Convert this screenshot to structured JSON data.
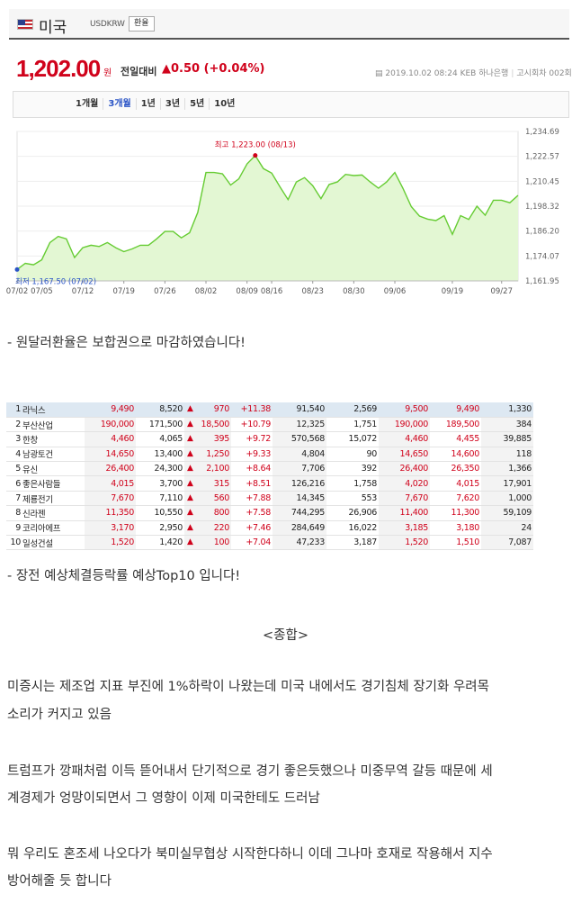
{
  "fx": {
    "country": "미국",
    "code": "USDKRW",
    "exchange_button": "환율",
    "price": "1,202.00",
    "unit": "원",
    "prev_label": "전일대비",
    "change": "▲0.50 (+0.04%)",
    "meta": {
      "datetime": "2019.10.02 08:24",
      "bank": "KEB 하나은행",
      "round": "고시회차 002회"
    },
    "periods": [
      "1개월",
      "3개월",
      "1년",
      "3년",
      "5년",
      "10년"
    ],
    "active_period": "3개월",
    "colors": {
      "up": "#d0021b",
      "line": "#66cc33",
      "fill": "#e3f7d3",
      "low_dot": "#2a54c6"
    }
  },
  "chart_data": {
    "type": "area",
    "ylim": [
      1161.95,
      1234.69
    ],
    "y_ticks": [
      "1,234.69",
      "1,222.57",
      "1,210.45",
      "1,198.32",
      "1,186.20",
      "1,174.07",
      "1,161.95"
    ],
    "x_ticks": [
      {
        "label": "07/02",
        "index": 0
      },
      {
        "label": "07/05",
        "index": 3
      },
      {
        "label": "07/12",
        "index": 8
      },
      {
        "label": "07/19",
        "index": 13
      },
      {
        "label": "07/26",
        "index": 18
      },
      {
        "label": "08/02",
        "index": 23
      },
      {
        "label": "08/09",
        "index": 28
      },
      {
        "label": "08/16",
        "index": 31
      },
      {
        "label": "08/23",
        "index": 36
      },
      {
        "label": "08/30",
        "index": 41
      },
      {
        "label": "09/06",
        "index": 46
      },
      {
        "label": "09/19",
        "index": 53
      },
      {
        "label": "09/27",
        "index": 59
      }
    ],
    "values": [
      1167.5,
      1170.5,
      1169.8,
      1172.2,
      1180.6,
      1183.6,
      1182.4,
      1173.3,
      1178.1,
      1179.3,
      1178.7,
      1180.6,
      1178.1,
      1176.2,
      1177.5,
      1179.3,
      1179.3,
      1182.4,
      1186.0,
      1186.0,
      1182.9,
      1185.4,
      1195.3,
      1214.7,
      1214.7,
      1214.1,
      1208.6,
      1211.6,
      1218.9,
      1223.0,
      1216.6,
      1214.4,
      1207.8,
      1201.5,
      1210.1,
      1212.2,
      1208.3,
      1202.0,
      1208.9,
      1210.1,
      1213.8,
      1213.2,
      1213.5,
      1210.1,
      1207.1,
      1210.1,
      1214.7,
      1206.8,
      1198.1,
      1193.5,
      1192.0,
      1191.3,
      1193.7,
      1184.6,
      1193.7,
      1191.9,
      1198.3,
      1193.9,
      1201.2,
      1201.2,
      1200.0,
      1203.6
    ],
    "max": {
      "label": "최고 1,223.00 (08/13)",
      "index": 29,
      "value": 1223.0
    },
    "min": {
      "label": "최저 1,167.50 (07/02)",
      "index": 0,
      "value": 1167.5
    }
  },
  "text": {
    "p1": "- 원달러환율은 보합권으로 마감하였습니다!",
    "p2": "- 장전 예상체결등락률 예상Top10 입니다!",
    "section": "<종합>",
    "p3_l1": "미증시는 제조업 지표 부진에 1%하락이 나왔는데 미국 내에서도 경기침체 장기화 우려목",
    "p3_l2": "소리가 커지고 있음",
    "p4_l1": "트럼프가 깡패처럼 이득 뜯어내서 단기적으로 경기 좋은듯했으나 미중무역 갈등 때문에 세",
    "p4_l2": "계경제가 엉망이되면서 그 영향이 이제 미국한테도 드러남",
    "p5_l1": "뭐 우리도 혼조세 나오다가 북미실무협상 시작한다하니 이데 그나마 호재로 작용해서 지수",
    "p5_l2": "방어해줄 듯 합니다"
  },
  "stocks": [
    {
      "rank": "1",
      "name": "라닉스",
      "open": "9,490",
      "cur": "8,520",
      "chg": "970",
      "pct": "+11.38",
      "vol": "91,540",
      "v2": "2,569",
      "high": "9,500",
      "low": "9,490",
      "last": "1,330"
    },
    {
      "rank": "2",
      "name": "부산산업",
      "open": "190,000",
      "cur": "171,500",
      "chg": "18,500",
      "pct": "+10.79",
      "vol": "12,325",
      "v2": "1,751",
      "high": "190,000",
      "low": "189,500",
      "last": "384"
    },
    {
      "rank": "3",
      "name": "한창",
      "open": "4,460",
      "cur": "4,065",
      "chg": "395",
      "pct": "+9.72",
      "vol": "570,568",
      "v2": "15,072",
      "high": "4,460",
      "low": "4,455",
      "last": "39,885"
    },
    {
      "rank": "4",
      "name": "남광토건",
      "open": "14,650",
      "cur": "13,400",
      "chg": "1,250",
      "pct": "+9.33",
      "vol": "4,804",
      "v2": "90",
      "high": "14,650",
      "low": "14,600",
      "last": "118"
    },
    {
      "rank": "5",
      "name": "유신",
      "open": "26,400",
      "cur": "24,300",
      "chg": "2,100",
      "pct": "+8.64",
      "vol": "7,706",
      "v2": "392",
      "high": "26,400",
      "low": "26,350",
      "last": "1,366"
    },
    {
      "rank": "6",
      "name": "좋은사람들",
      "open": "4,015",
      "cur": "3,700",
      "chg": "315",
      "pct": "+8.51",
      "vol": "126,216",
      "v2": "1,758",
      "high": "4,020",
      "low": "4,015",
      "last": "17,901"
    },
    {
      "rank": "7",
      "name": "제룡전기",
      "open": "7,670",
      "cur": "7,110",
      "chg": "560",
      "pct": "+7.88",
      "vol": "14,345",
      "v2": "553",
      "high": "7,670",
      "low": "7,620",
      "last": "1,000"
    },
    {
      "rank": "8",
      "name": "신라젠",
      "open": "11,350",
      "cur": "10,550",
      "chg": "800",
      "pct": "+7.58",
      "vol": "744,295",
      "v2": "26,906",
      "high": "11,400",
      "low": "11,300",
      "last": "59,109"
    },
    {
      "rank": "9",
      "name": "코리아에프",
      "open": "3,170",
      "cur": "2,950",
      "chg": "220",
      "pct": "+7.46",
      "vol": "284,649",
      "v2": "16,022",
      "high": "3,185",
      "low": "3,180",
      "last": "24"
    },
    {
      "rank": "10",
      "name": "일성건설",
      "open": "1,520",
      "cur": "1,420",
      "chg": "100",
      "pct": "+7.04",
      "vol": "47,233",
      "v2": "3,187",
      "high": "1,520",
      "low": "1,510",
      "last": "7,087"
    }
  ],
  "stock_up_symbol": "▲"
}
